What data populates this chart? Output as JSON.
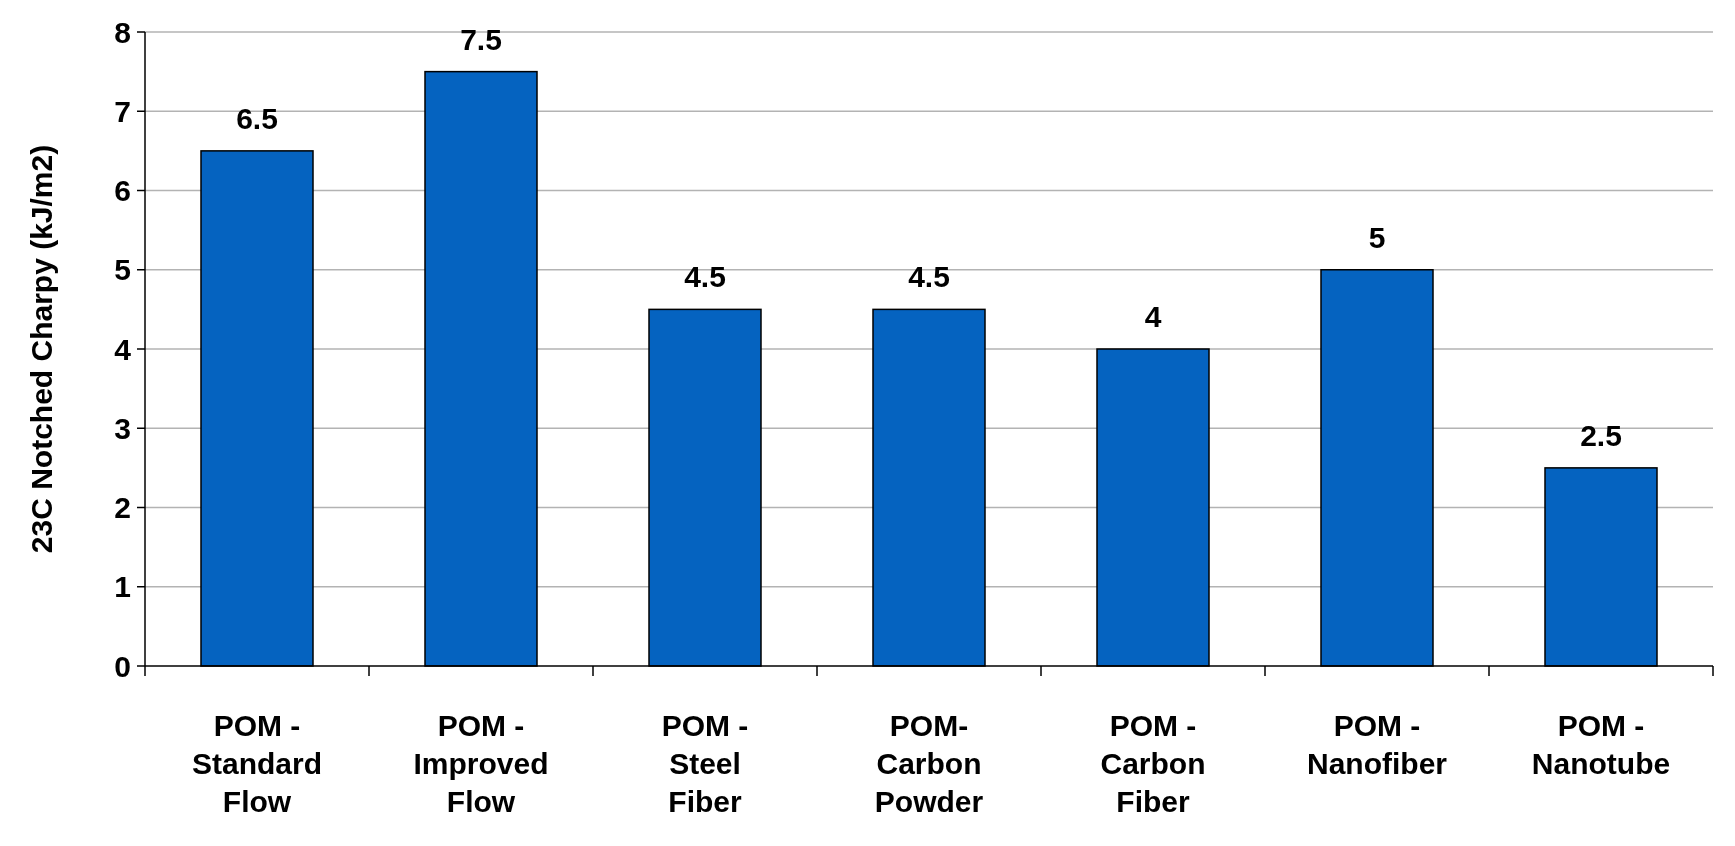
{
  "chart_data": {
    "type": "bar",
    "ylabel": "23C Notched Charpy (kJ/m2)",
    "categories": [
      "POM - Standard Flow",
      "POM - Improved Flow",
      "POM - Steel Fiber",
      "POM- Carbon Powder",
      "POM - Carbon Fiber",
      "POM - Nanofiber",
      "POM - Nanotube"
    ],
    "values": [
      6.5,
      7.5,
      4.5,
      4.5,
      4,
      5,
      2.5
    ],
    "color": "#0563c0",
    "ylim": [
      0,
      8
    ],
    "yticks": [
      0,
      1,
      2,
      3,
      4,
      5,
      6,
      7,
      8
    ],
    "grid": "y",
    "data_labels": true
  }
}
